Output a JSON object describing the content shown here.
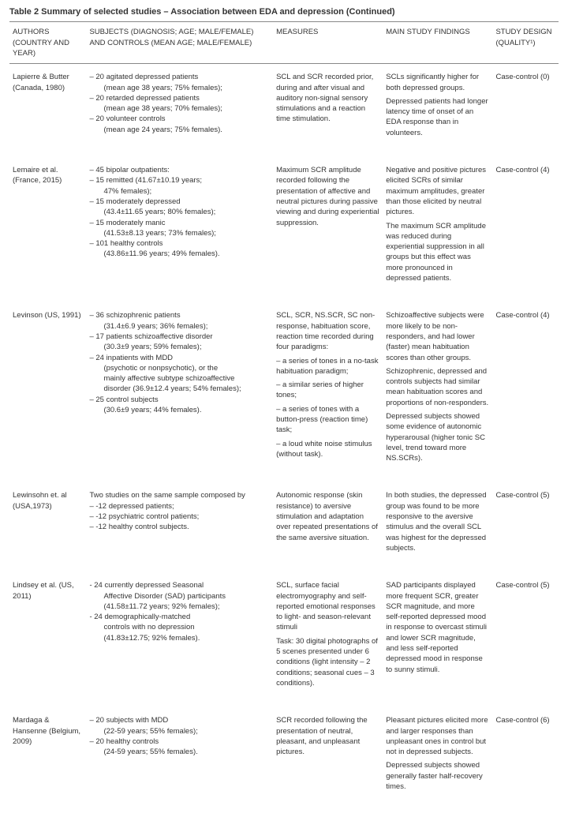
{
  "caption": "Table 2 Summary of selected studies – Association between EDA and depression (Continued)",
  "headers": {
    "authors": "AUTHORS (COUNTRY AND YEAR)",
    "subjects": "SUBJECTS (DIAGNOSIS; AGE; MALE/FEMALE) AND CONTROLS (MEAN AGE; MALE/FEMALE)",
    "measures": "MEASURES",
    "findings": "MAIN STUDY FINDINGS",
    "design": "STUDY DESIGN (QUALITY¹)"
  },
  "rows": [
    {
      "authors": "Lapierre & Butter (Canada, 1980)",
      "subjects": [
        "– 20 agitated depressed patients",
        "  (mean age 38 years; 75% females);",
        "– 20 retarded depressed patients",
        "  (mean age 38 years; 70% females);",
        "– 20 volunteer controls",
        "  (mean age 24 years; 75% females)."
      ],
      "measures": "SCL and SCR recorded prior, during and after visual and auditory non-signal sensory stimulations and a reaction time stimulation.",
      "findings": "SCLs significantly higher for both depressed groups.\nDepressed patients had longer latency time of onset of an EDA response than in volunteers.",
      "design": "Case-control (0)"
    },
    {
      "authors": "Lemaire et al. (France, 2015)",
      "subjects": [
        "– 45 bipolar outpatients:",
        "– 15 remitted (41.67±10.19 years;",
        "  47% females);",
        "– 15 moderately depressed",
        "  (43.4±11.65 years; 80% females);",
        "– 15 moderately manic",
        "  (41.53±8.13 years; 73% females);",
        "– 101 healthy controls",
        "  (43.86±11.96 years; 49% females)."
      ],
      "measures": "Maximum SCR amplitude recorded following the presentation of affective and neutral pictures during passive viewing and during experiential suppression.",
      "findings": "Negative and positive pictures elicited SCRs of similar maximum amplitudes, greater than those elicited by neutral pictures.\nThe maximum SCR amplitude was reduced during experiential suppression in all groups but this effect was more pronounced in depressed patients.",
      "design": "Case-control (4)"
    },
    {
      "authors": "Levinson (US, 1991)",
      "subjects": [
        "– 36 schizophrenic patients",
        "  (31.4±6.9 years; 36% females);",
        "– 17 patients schizoaffective disorder",
        "  (30.3±9 years; 59% females);",
        "– 24 inpatients with MDD",
        "  (psychotic or nonpsychotic), or the",
        "  mainly affective subtype schizoaffective",
        "  disorder (36.9±12.4 years; 54% females);",
        "– 25 control subjects",
        "  (30.6±9 years; 44% females)."
      ],
      "measures": "SCL, SCR, NS.SCR, SC non-response, habituation score, reaction time recorded during four paradigms:\n– a series of tones in a no-task habituation paradigm;\n– a similar series of higher tones;\n– a series of tones with a button-press (reaction time) task;\n– a loud white noise stimulus (without task).",
      "findings": "Schizoaffective subjects were more likely to be non-responders, and had lower (faster) mean habituation scores than other groups.\nSchizophrenic, depressed and controls subjects had similar mean habituation scores and proportions of non-responders.\nDepressed subjects showed some evidence of autonomic hyperarousal (higher tonic SC level, trend toward more NS.SCRs).",
      "design": "Case-control (4)"
    },
    {
      "authors": "Lewinsohn et. al (USA,1973)",
      "subjects": [
        "Two studies on the same sample composed by",
        "– -12 depressed patients;",
        "– -12 psychiatric control patients;",
        "– -12 healthy control subjects."
      ],
      "measures": "Autonomic response (skin resistance) to aversive stimulation and adaptation over repeated presentations of the same aversive situation.",
      "findings": "In both studies, the depressed group was found to be more responsive to the aversive stimulus and the overall SCL was highest for the depressed subjects.",
      "design": "Case-control (5)"
    },
    {
      "authors": "Lindsey et al. (US, 2011)",
      "subjects": [
        "- 24 currently depressed Seasonal",
        "  Affective Disorder (SAD) participants",
        "  (41.58±11.72 years; 92% females);",
        "- 24 demographically-matched",
        "  controls with no depression",
        "  (41.83±12.75; 92% females)."
      ],
      "measures": "SCL, surface facial electromyography and self-reported emotional responses to light- and season-relevant stimuli\nTask: 30 digital photographs of 5 scenes presented under 6 conditions (light intensity – 2 conditions; seasonal cues – 3 conditions).",
      "findings": "SAD participants displayed more frequent SCR, greater SCR magnitude, and more self-reported depressed mood in response to overcast stimuli and lower SCR magnitude, and less self-reported depressed mood in response to sunny stimuli.",
      "design": "Case-control (5)"
    },
    {
      "authors": "Mardaga & Hansenne (Belgium, 2009)",
      "subjects": [
        "– 20 subjects with MDD",
        "  (22-59 years; 55% females);",
        "– 20 healthy controls",
        "  (24-59 years; 55% females)."
      ],
      "measures": "SCR recorded following the presentation of neutral, pleasant, and unpleasant pictures.",
      "findings": "Pleasant pictures elicited more and larger responses than unpleasant ones in control but not in depressed subjects.\nDepressed subjects showed generally faster half-recovery times.",
      "design": "Case-control (6)"
    }
  ]
}
